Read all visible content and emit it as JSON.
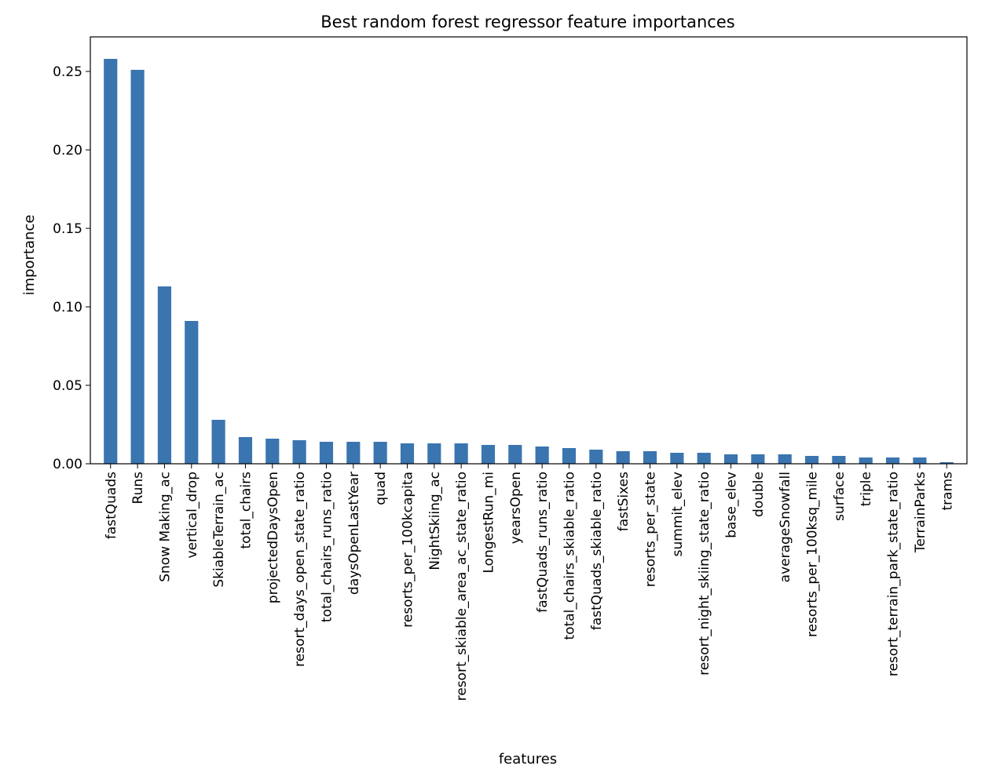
{
  "chart_data": {
    "type": "bar",
    "title": "Best random forest regressor feature importances",
    "xlabel": "features",
    "ylabel": "importance",
    "ylim": [
      0,
      0.272
    ],
    "yticks": [
      "0.00",
      "0.05",
      "0.10",
      "0.15",
      "0.20",
      "0.25"
    ],
    "ytick_values": [
      0,
      0.05,
      0.1,
      0.15,
      0.2,
      0.25
    ],
    "grid": false,
    "legend": "none",
    "bar_color": "#3a75b0",
    "categories": [
      "fastQuads",
      "Runs",
      "Snow Making_ac",
      "vertical_drop",
      "SkiableTerrain_ac",
      "total_chairs",
      "projectedDaysOpen",
      "resort_days_open_state_ratio",
      "total_chairs_runs_ratio",
      "daysOpenLastYear",
      "quad",
      "resorts_per_100kcapita",
      "NightSkiing_ac",
      "resort_skiable_area_ac_state_ratio",
      "LongestRun_mi",
      "yearsOpen",
      "fastQuads_runs_ratio",
      "total_chairs_skiable_ratio",
      "fastQuads_skiable_ratio",
      "fastSixes",
      "resorts_per_state",
      "summit_elev",
      "resort_night_skiing_state_ratio",
      "base_elev",
      "double",
      "averageSnowfall",
      "resorts_per_100ksq_mile",
      "surface",
      "triple",
      "resort_terrain_park_state_ratio",
      "TerrainParks",
      "trams"
    ],
    "values": [
      0.258,
      0.251,
      0.113,
      0.091,
      0.028,
      0.017,
      0.016,
      0.015,
      0.014,
      0.014,
      0.014,
      0.013,
      0.013,
      0.013,
      0.012,
      0.012,
      0.011,
      0.01,
      0.009,
      0.008,
      0.008,
      0.007,
      0.007,
      0.006,
      0.006,
      0.006,
      0.005,
      0.005,
      0.004,
      0.004,
      0.004,
      0.001
    ]
  }
}
